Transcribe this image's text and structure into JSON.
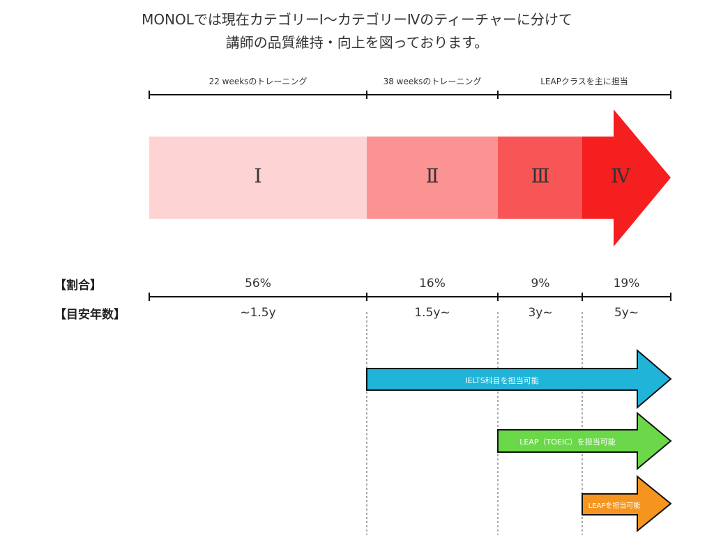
{
  "heading": {
    "line1": "MONOLでは現在カテゴリーⅠ〜カテゴリーⅣのティーチャーに分けて",
    "line2": "講師の品質維持・向上を図っております。"
  },
  "phases": [
    "22 weeksのトレーニング",
    "38 weeksのトレーニング",
    "LEAPクラスを主に担当"
  ],
  "categories": [
    "Ⅰ",
    "Ⅱ",
    "Ⅲ",
    "Ⅳ"
  ],
  "rows": {
    "ratio_label": "【割合】",
    "ratio_values": [
      "56%",
      "16%",
      "9%",
      "19%"
    ],
    "years_label": "【目安年数】",
    "years_values": [
      "~1.5y",
      "1.5y~",
      "3y~",
      "5y~"
    ]
  },
  "capabilities": [
    {
      "text": "IELTS科目を担当可能",
      "from_category": "Ⅱ",
      "color": "#1fb4d8"
    },
    {
      "text": "LEAP（TOEIC）を担当可能",
      "from_category": "Ⅲ",
      "color": "#6bd84a"
    },
    {
      "text": "LEAPを担当可能",
      "from_category": "Ⅳ",
      "color": "#f5951f"
    }
  ],
  "colors": {
    "cat1": "#fdd3d3",
    "cat2": "#fb9393",
    "cat3": "#f85656",
    "cat4": "#f51f1f"
  }
}
